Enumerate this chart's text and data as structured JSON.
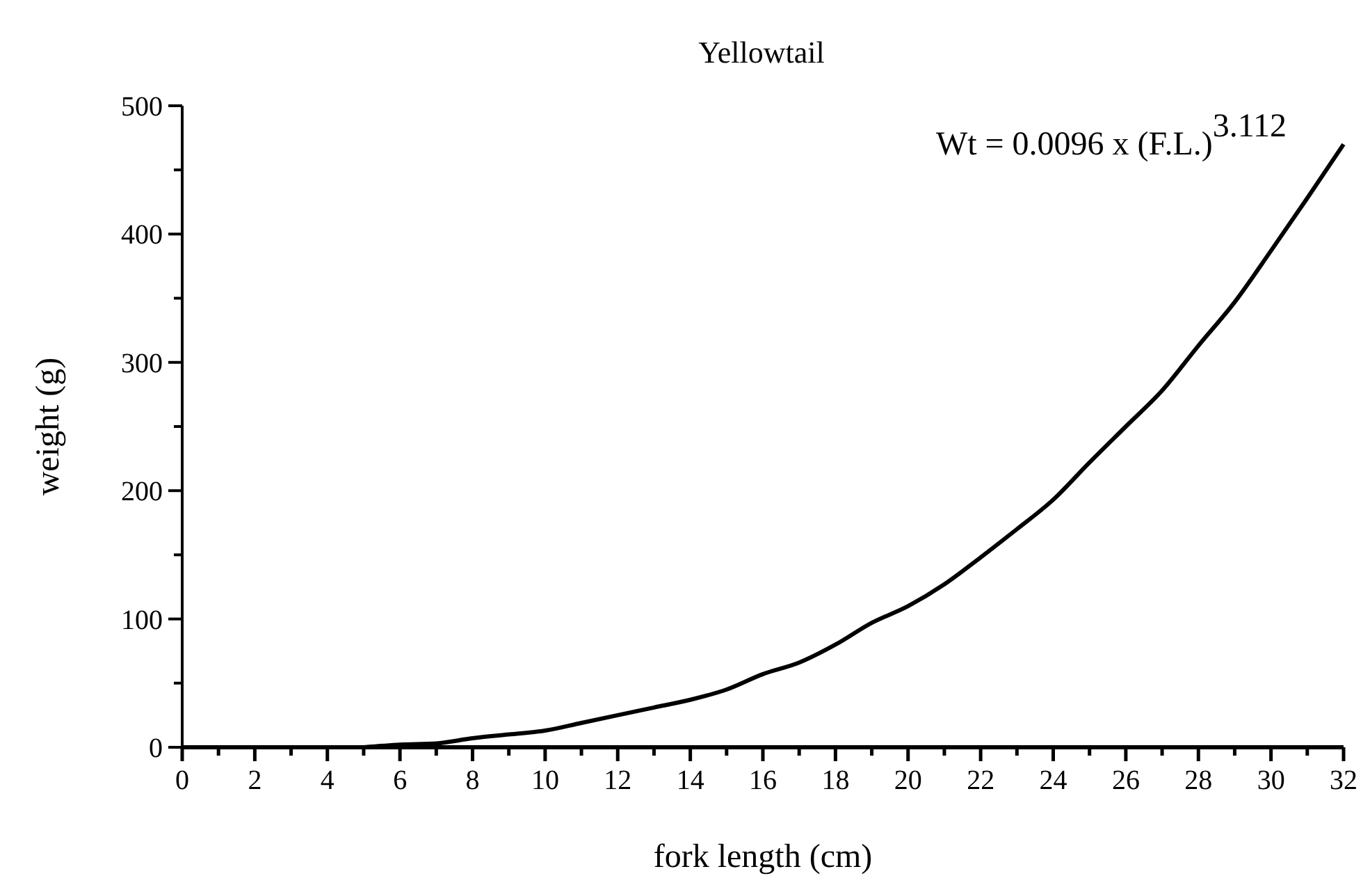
{
  "chart_data": {
    "type": "line",
    "title": "Yellowtail",
    "xlabel": "fork length (cm)",
    "ylabel": "weight (g)",
    "annotations": [
      "Wt = 0.0096 x (F.L.)$^{3.112}$"
    ],
    "xlim": [
      0,
      32
    ],
    "ylim": [
      0,
      500
    ],
    "xticks": [
      0,
      {
        "value": 1,
        "label": null
      },
      2,
      {
        "value": 3,
        "label": null
      },
      4,
      {
        "value": 5,
        "label": null
      },
      6,
      {
        "value": 7,
        "label": null
      },
      8,
      {
        "value": 9,
        "label": null
      },
      10,
      {
        "value": 11,
        "label": null
      },
      12,
      {
        "value": 13,
        "label": null
      },
      14,
      {
        "value": 15,
        "label": null
      },
      16,
      {
        "value": 17,
        "label": null
      },
      18,
      {
        "value": 19,
        "label": null
      },
      20,
      {
        "value": 21,
        "label": null
      },
      22,
      {
        "value": 23,
        "label": null
      },
      24,
      {
        "value": 25,
        "label": null
      },
      26,
      {
        "value": 27,
        "label": null
      },
      28,
      {
        "value": 29,
        "label": null
      },
      30,
      {
        "value": 31,
        "label": null
      },
      32
    ],
    "yticks": [
      0,
      {
        "value": 50,
        "label": null
      },
      100,
      {
        "value": 150,
        "label": null
      },
      200,
      {
        "value": 250,
        "label": null
      },
      300,
      {
        "value": 350,
        "label": null
      },
      400,
      {
        "value": 450,
        "label": null
      },
      500
    ],
    "x": [
      5,
      6,
      7,
      8,
      9,
      10,
      11,
      12,
      13,
      14,
      15,
      16,
      17,
      18,
      19,
      20,
      21,
      22,
      23,
      24,
      25,
      26,
      27,
      28,
      29,
      30,
      31,
      32
    ],
    "series": [
      {
        "color": "#000000",
        "values": [
          0,
          2,
          3,
          7,
          10,
          13,
          19,
          25,
          31,
          37,
          45,
          57,
          66,
          80,
          97,
          110,
          127,
          148,
          170,
          193,
          222,
          250,
          278,
          313,
          347,
          387,
          428,
          470
        ]
      }
    ]
  }
}
